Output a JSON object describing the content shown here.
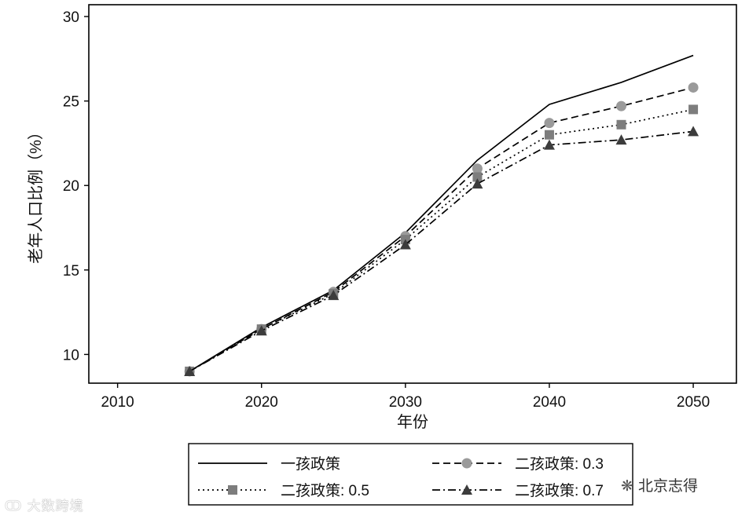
{
  "chart_data": {
    "type": "line",
    "title": "",
    "xlabel": "年份",
    "ylabel": "老年人口比例（%）",
    "xlim": [
      2008,
      2053
    ],
    "ylim": [
      8.3,
      30.7
    ],
    "xticks": [
      2010,
      2020,
      2030,
      2040,
      2050
    ],
    "yticks": [
      10,
      15,
      20,
      25,
      30
    ],
    "grid": false,
    "legend_position": "bottom",
    "x": [
      2015,
      2020,
      2025,
      2030,
      2035,
      2040,
      2045,
      2050
    ],
    "series": [
      {
        "name": "一孩政策",
        "style": "solid",
        "marker": "none",
        "color": "#000000",
        "values": [
          9.0,
          11.6,
          13.8,
          17.2,
          21.5,
          24.8,
          26.1,
          27.7
        ]
      },
      {
        "name": "二孩政策: 0.3",
        "style": "dashed",
        "marker": "circle",
        "color": "#9a9a9a",
        "values": [
          9.0,
          11.5,
          13.7,
          17.0,
          21.0,
          23.7,
          24.7,
          25.8
        ]
      },
      {
        "name": "二孩政策: 0.5",
        "style": "dotted",
        "marker": "square",
        "color": "#7d7d7d",
        "values": [
          9.0,
          11.5,
          13.6,
          16.8,
          20.5,
          23.0,
          23.6,
          24.5
        ]
      },
      {
        "name": "二孩政策: 0.7",
        "style": "dashdot",
        "marker": "triangle",
        "color": "#3c3c3c",
        "values": [
          9.0,
          11.4,
          13.5,
          16.5,
          20.1,
          22.4,
          22.7,
          23.2
        ]
      }
    ]
  },
  "watermarks": {
    "left": "大数跨境",
    "right": "北京志得"
  }
}
